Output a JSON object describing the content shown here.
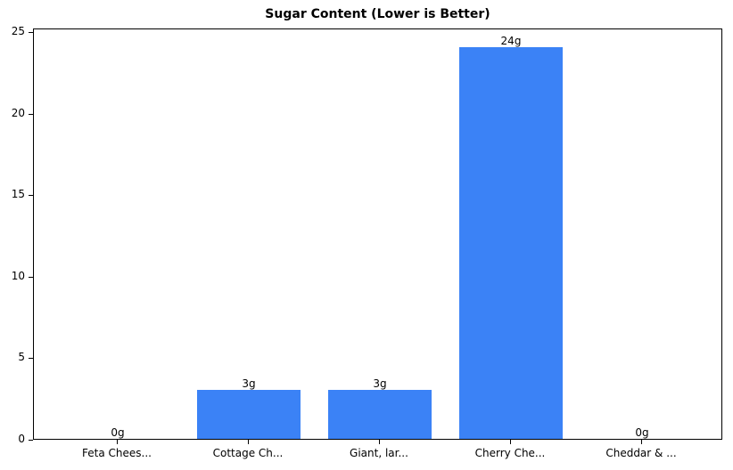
{
  "chart_data": {
    "type": "bar",
    "title": "Sugar Content (Lower is Better)",
    "categories": [
      "Feta Chees...",
      "Cottage Ch...",
      "Giant, lar...",
      "Cherry Che...",
      "Cheddar & ..."
    ],
    "values": [
      0,
      3,
      3,
      24,
      0
    ],
    "value_labels": [
      "0g",
      "3g",
      "3g",
      "24g",
      "0g"
    ],
    "xlabel": "",
    "ylabel": "",
    "ylim": [
      0,
      25.2
    ],
    "yticks": [
      0,
      5,
      10,
      15,
      20,
      25
    ],
    "bar_color": "#3b82f6",
    "grid": false,
    "legend": null
  }
}
